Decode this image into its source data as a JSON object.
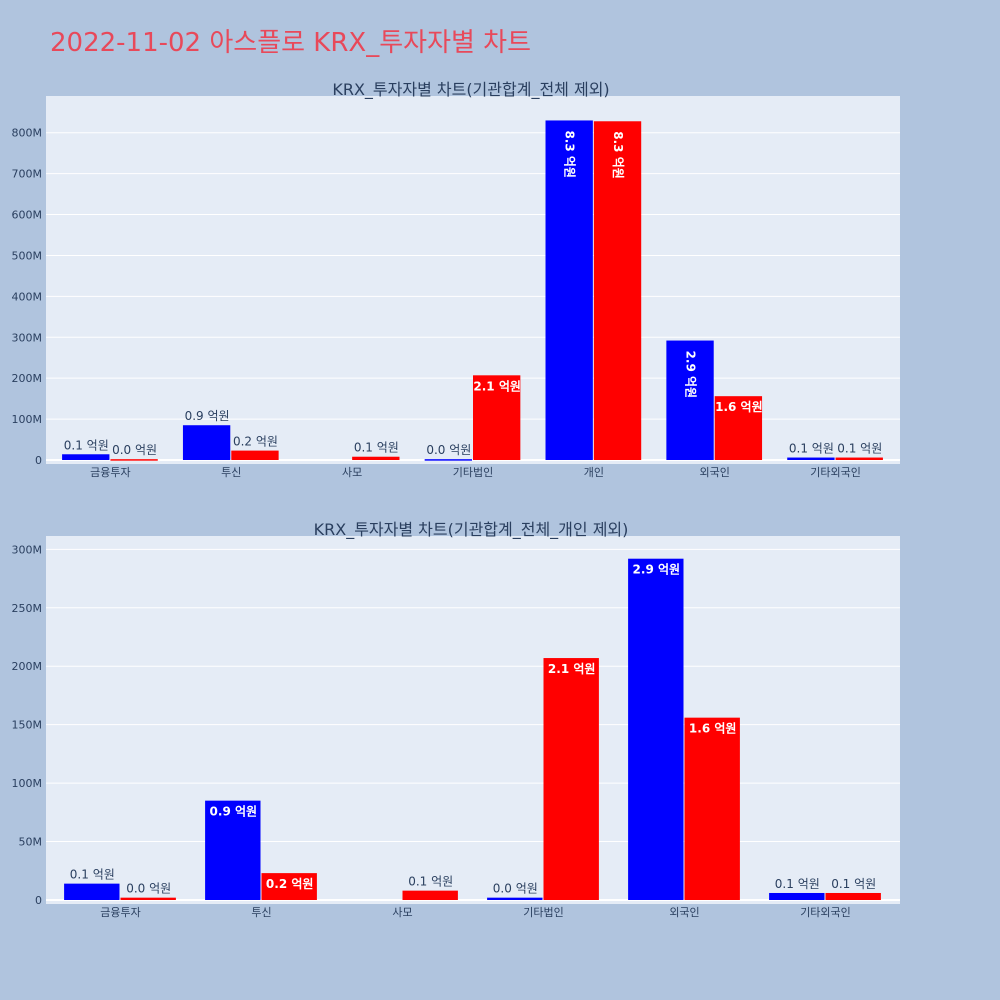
{
  "page_title": "2022-11-02 아스플로 KRX_투자자별 차트",
  "colors": {
    "buy": "#0000ff",
    "sell": "#ff0000",
    "page_bg": "#b0c4de",
    "plot_bg": "#e5ecf6",
    "title": "#e8495a"
  },
  "chart_data": [
    {
      "type": "bar",
      "title": "KRX_투자자별 차트(기관합계_전체 제외)",
      "categories": [
        "금융투자",
        "투신",
        "사모",
        "기타법인",
        "개인",
        "외국인",
        "기타외국인"
      ],
      "ylim": [
        0,
        880000000
      ],
      "y_ticks": [
        0,
        100000000,
        200000000,
        300000000,
        400000000,
        500000000,
        600000000,
        700000000,
        800000000
      ],
      "y_tick_labels": [
        "0",
        "100M",
        "200M",
        "300M",
        "400M",
        "500M",
        "600M",
        "700M",
        "800M"
      ],
      "grid": true,
      "series": [
        {
          "color": "#0000ff",
          "values": [
            14000000,
            85000000,
            0,
            2000000,
            830000000,
            292000000,
            6000000
          ],
          "labels": [
            "0.1 억원",
            "0.9 억원",
            "",
            "0.0 억원",
            "8.3 억원",
            "2.9 억원",
            "0.1 억원"
          ]
        },
        {
          "color": "#ff0000",
          "values": [
            2000000,
            23000000,
            8000000,
            207000000,
            828000000,
            156000000,
            6000000
          ],
          "labels": [
            "0.0 억원",
            "0.2 억원",
            "0.1 억원",
            "2.1 억원",
            "8.3 억원",
            "1.6 억원",
            "0.1 억원"
          ]
        }
      ]
    },
    {
      "type": "bar",
      "title": "KRX_투자자별 차트(기관합계_전체_개인 제외)",
      "categories": [
        "금융투자",
        "투신",
        "사모",
        "기타법인",
        "외국인",
        "기타외국인"
      ],
      "ylim": [
        0,
        308000000
      ],
      "y_ticks": [
        0,
        50000000,
        100000000,
        150000000,
        200000000,
        250000000,
        300000000
      ],
      "y_tick_labels": [
        "0",
        "50M",
        "100M",
        "150M",
        "200M",
        "250M",
        "300M"
      ],
      "grid": true,
      "series": [
        {
          "color": "#0000ff",
          "values": [
            14000000,
            85000000,
            0,
            2000000,
            292000000,
            6000000
          ],
          "labels": [
            "0.1 억원",
            "0.9 억원",
            "",
            "0.0 억원",
            "2.9 억원",
            "0.1 억원"
          ]
        },
        {
          "color": "#ff0000",
          "values": [
            2000000,
            23000000,
            8000000,
            207000000,
            156000000,
            6000000
          ],
          "labels": [
            "0.0 억원",
            "0.2 억원",
            "0.1 억원",
            "2.1 억원",
            "1.6 억원",
            "0.1 억원"
          ]
        }
      ]
    }
  ]
}
